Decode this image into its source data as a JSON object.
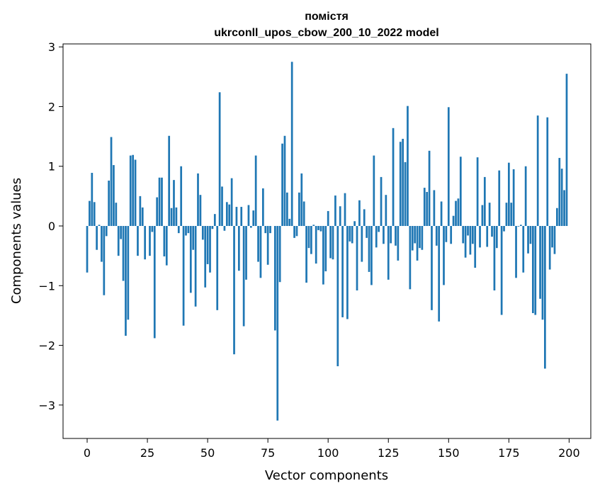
{
  "chart_data": {
    "type": "bar",
    "title_line1": "помістя",
    "title_line2": "ukrconll_upos_cbow_200_10_2022 model",
    "xlabel": "Vector components",
    "ylabel": "Components values",
    "xlim": [
      -10,
      209
    ],
    "ylim": [
      -3.56,
      3.05
    ],
    "xticks": [
      0,
      25,
      50,
      75,
      100,
      125,
      150,
      175,
      200
    ],
    "yticks": [
      -3,
      -2,
      -1,
      0,
      1,
      2,
      3
    ],
    "ytick_labels": [
      "−3",
      "−2",
      "−1",
      "0",
      "1",
      "2",
      "3"
    ],
    "bar_color": "#1f77b4",
    "grid": false,
    "x": [
      0,
      1,
      2,
      3,
      4,
      5,
      6,
      7,
      8,
      9,
      10,
      11,
      12,
      13,
      14,
      15,
      16,
      17,
      18,
      19,
      20,
      21,
      22,
      23,
      24,
      25,
      26,
      27,
      28,
      29,
      30,
      31,
      32,
      33,
      34,
      35,
      36,
      37,
      38,
      39,
      40,
      41,
      42,
      43,
      44,
      45,
      46,
      47,
      48,
      49,
      50,
      51,
      52,
      53,
      54,
      55,
      56,
      57,
      58,
      59,
      60,
      61,
      62,
      63,
      64,
      65,
      66,
      67,
      68,
      69,
      70,
      71,
      72,
      73,
      74,
      75,
      76,
      77,
      78,
      79,
      80,
      81,
      82,
      83,
      84,
      85,
      86,
      87,
      88,
      89,
      90,
      91,
      92,
      93,
      94,
      95,
      96,
      97,
      98,
      99,
      100,
      101,
      102,
      103,
      104,
      105,
      106,
      107,
      108,
      109,
      110,
      111,
      112,
      113,
      114,
      115,
      116,
      117,
      118,
      119,
      120,
      121,
      122,
      123,
      124,
      125,
      126,
      127,
      128,
      129,
      130,
      131,
      132,
      133,
      134,
      135,
      136,
      137,
      138,
      139,
      140,
      141,
      142,
      143,
      144,
      145,
      146,
      147,
      148,
      149,
      150,
      151,
      152,
      153,
      154,
      155,
      156,
      157,
      158,
      159,
      160,
      161,
      162,
      163,
      164,
      165,
      166,
      167,
      168,
      169,
      170,
      171,
      172,
      173,
      174,
      175,
      176,
      177,
      178,
      179,
      180,
      181,
      182,
      183,
      184,
      185,
      186,
      187,
      188,
      189,
      190,
      191,
      192,
      193,
      194,
      195,
      196,
      197,
      198,
      199
    ],
    "values": [
      -0.78,
      0.42,
      0.89,
      0.4,
      -0.4,
      0.02,
      -0.6,
      -1.16,
      -0.17,
      0.76,
      1.49,
      1.02,
      0.39,
      -0.5,
      -0.22,
      -0.92,
      -1.84,
      -1.57,
      1.18,
      1.19,
      1.11,
      -0.5,
      0.5,
      0.31,
      -0.56,
      0.0,
      -0.5,
      -0.1,
      -1.88,
      0.48,
      0.81,
      0.81,
      -0.51,
      -0.66,
      1.51,
      0.3,
      0.77,
      0.31,
      -0.12,
      1.0,
      -1.67,
      -0.16,
      -0.12,
      -1.12,
      -0.4,
      -1.35,
      0.88,
      0.52,
      -0.23,
      -1.03,
      -0.64,
      -0.78,
      -0.05,
      0.2,
      -1.41,
      2.24,
      0.66,
      -0.08,
      0.4,
      0.36,
      0.8,
      -2.15,
      0.32,
      -0.75,
      0.32,
      -1.68,
      -0.9,
      0.35,
      -0.03,
      0.26,
      1.18,
      -0.6,
      -0.87,
      0.63,
      -0.12,
      -0.65,
      -0.12,
      0.0,
      -1.75,
      -3.26,
      -0.94,
      1.38,
      1.51,
      0.56,
      0.12,
      2.75,
      -0.2,
      -0.17,
      0.56,
      0.88,
      0.41,
      -0.95,
      -0.37,
      -0.47,
      0.02,
      -0.63,
      -0.07,
      -0.09,
      -0.98,
      -0.76,
      0.25,
      -0.54,
      -0.56,
      0.51,
      -2.35,
      0.33,
      -1.53,
      0.55,
      -1.56,
      -0.26,
      -0.29,
      0.08,
      -1.08,
      0.43,
      -0.6,
      0.28,
      -0.2,
      -0.77,
      -0.99,
      1.18,
      -0.36,
      -0.1,
      0.82,
      -0.3,
      0.52,
      -0.9,
      -0.29,
      1.64,
      -0.33,
      -0.58,
      1.41,
      1.46,
      1.07,
      2.01,
      -1.06,
      -0.41,
      -0.29,
      -0.58,
      -0.37,
      -0.4,
      0.64,
      0.57,
      1.26,
      -1.41,
      0.6,
      -0.33,
      -1.6,
      0.41,
      -0.99,
      -0.27,
      1.99,
      -0.3,
      0.17,
      0.42,
      0.46,
      1.16,
      -0.29,
      -0.53,
      -0.16,
      -0.48,
      -0.3,
      -0.7,
      1.15,
      -0.36,
      0.35,
      0.82,
      -0.35,
      0.39,
      -0.18,
      -1.08,
      -0.37,
      0.93,
      -1.49,
      -0.09,
      0.39,
      1.06,
      0.39,
      0.95,
      -0.87,
      -0.01,
      0.02,
      -0.78,
      1.0,
      -0.46,
      -0.3,
      -1.46,
      -1.49,
      1.85,
      -1.22,
      -1.57,
      -2.39,
      1.82,
      -0.73,
      -0.36,
      -0.47,
      0.3,
      1.14,
      0.96,
      0.6,
      2.55
    ]
  }
}
